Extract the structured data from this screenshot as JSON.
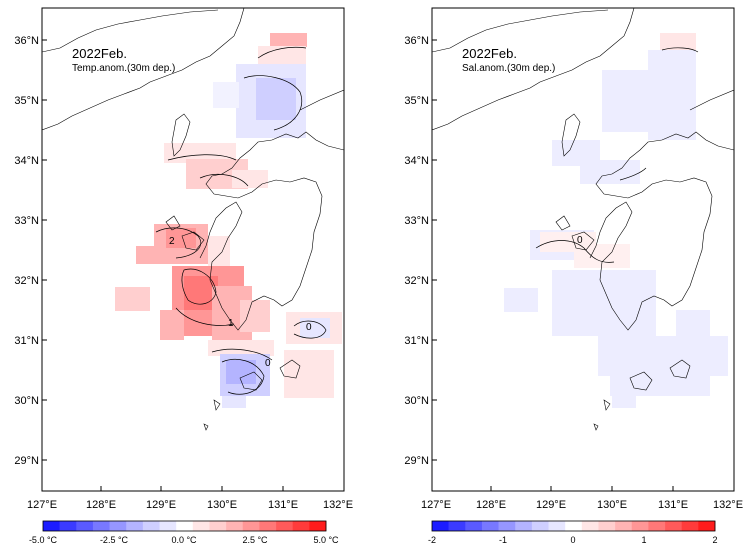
{
  "panels": [
    {
      "id": "temp",
      "title_line1": "2022Feb.",
      "title_line2": "Temp.anom.(30m dep.)",
      "lat_labels": [
        "36°N",
        "35°N",
        "34°N",
        "33°N",
        "32°N",
        "31°N",
        "30°N",
        "29°N"
      ],
      "lon_labels": [
        "127°E",
        "128°E",
        "129°E",
        "130°E",
        "131°E",
        "132°E"
      ],
      "contour_labels": [
        "2",
        "1",
        "0",
        "0"
      ],
      "colorbar": {
        "colors": [
          "#1c1cff",
          "#3b3bff",
          "#5a5aff",
          "#7878ff",
          "#9696ff",
          "#b4b4ff",
          "#cfcfff",
          "#e6e6ff",
          "#ffffff",
          "#ffe6e6",
          "#ffcfcf",
          "#ffb4b4",
          "#ff9696",
          "#ff7878",
          "#ff5a5a",
          "#ff3b3b",
          "#ff1c1c"
        ],
        "tick_labels": [
          "-5.0 °C",
          "-2.5 °C",
          "0.0 °C",
          "2.5 °C",
          "5.0 °C"
        ]
      }
    },
    {
      "id": "sal",
      "title_line1": "2022Feb.",
      "title_line2": "Sal.anom.(30m dep.)",
      "lat_labels": [
        "36°N",
        "35°N",
        "34°N",
        "33°N",
        "32°N",
        "31°N",
        "30°N",
        "29°N"
      ],
      "lon_labels": [
        "127°E",
        "128°E",
        "129°E",
        "130°E",
        "131°E",
        "132°E"
      ],
      "contour_labels": [
        "0"
      ],
      "colorbar": {
        "colors": [
          "#1c1cff",
          "#3b3bff",
          "#5a5aff",
          "#7878ff",
          "#9696ff",
          "#b4b4ff",
          "#cfcfff",
          "#e6e6ff",
          "#ffffff",
          "#ffe6e6",
          "#ffcfcf",
          "#ffb4b4",
          "#ff9696",
          "#ff7878",
          "#ff5a5a",
          "#ff3b3b",
          "#ff1c1c"
        ],
        "tick_labels": [
          "-2",
          "-1",
          "0",
          "1",
          "2"
        ]
      }
    }
  ]
}
